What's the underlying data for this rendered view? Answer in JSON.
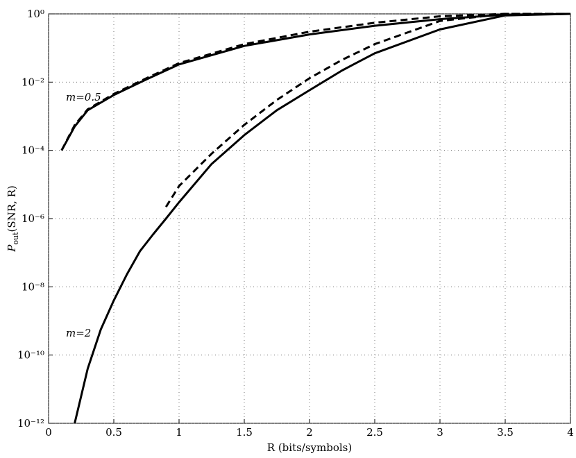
{
  "chart_data": {
    "type": "line",
    "x_label": "R (bits/symbols)",
    "y_label": {
      "main": "P",
      "sub": "out",
      "rest": "(SNR, R)"
    },
    "annotations": [
      "m=0.5",
      "m=2"
    ],
    "log_y": true,
    "grid": true,
    "xlim": [
      0,
      4
    ],
    "xticks": [
      0,
      0.5,
      1,
      1.5,
      2,
      2.5,
      3,
      3.5,
      4
    ],
    "ylim": [
      1e-12,
      1
    ],
    "yticks": [
      {
        "value": 1e-12,
        "label": "10⁻¹²"
      },
      {
        "value": 1e-10,
        "label": "10⁻¹⁰"
      },
      {
        "value": 1e-08,
        "label": "10⁻⁸"
      },
      {
        "value": 1e-06,
        "label": "10⁻⁶"
      },
      {
        "value": 0.0001,
        "label": "10⁻⁴"
      },
      {
        "value": 0.01,
        "label": "10⁻²"
      },
      {
        "value": 1,
        "label": "10⁰"
      }
    ],
    "series": [
      {
        "color": "#000000",
        "dash": false,
        "x": [
          0.1,
          0.2,
          0.3,
          0.5,
          0.75,
          1,
          1.5,
          2,
          2.5,
          3,
          3.5,
          4
        ],
        "values": [
          0.0001,
          0.0005,
          0.0015,
          0.0042,
          0.012,
          0.033,
          0.115,
          0.25,
          0.45,
          0.7,
          0.95,
          1
        ]
      },
      {
        "color": "#000000",
        "dash": true,
        "x": [
          0.1,
          0.2,
          0.3,
          0.5,
          0.75,
          1,
          1.5,
          2,
          2.5,
          3,
          3.5,
          4
        ],
        "values": [
          0.0001,
          0.00055,
          0.0016,
          0.0045,
          0.013,
          0.036,
          0.13,
          0.3,
          0.55,
          0.85,
          1,
          1
        ]
      },
      {
        "color": "#000000",
        "dash": false,
        "x": [
          0.2,
          0.3,
          0.4,
          0.5,
          0.6,
          0.7,
          0.8,
          0.9,
          1,
          1.25,
          1.5,
          1.75,
          2,
          2.25,
          2.5,
          3,
          3.5,
          4
        ],
        "values": [
          1e-12,
          4e-11,
          5.6e-10,
          4e-09,
          2.3e-08,
          1.1e-07,
          3.4e-07,
          1e-06,
          3e-06,
          4e-05,
          0.00028,
          0.0015,
          0.0058,
          0.022,
          0.07,
          0.35,
          0.9,
          1
        ]
      },
      {
        "color": "#000000",
        "dash": true,
        "x": [
          0.9,
          1,
          1.25,
          1.5,
          1.75,
          2,
          2.25,
          2.5,
          3,
          3.5,
          4
        ],
        "values": [
          2.2e-06,
          9e-06,
          8e-05,
          0.00056,
          0.003,
          0.013,
          0.045,
          0.13,
          0.62,
          1,
          1
        ]
      }
    ]
  }
}
